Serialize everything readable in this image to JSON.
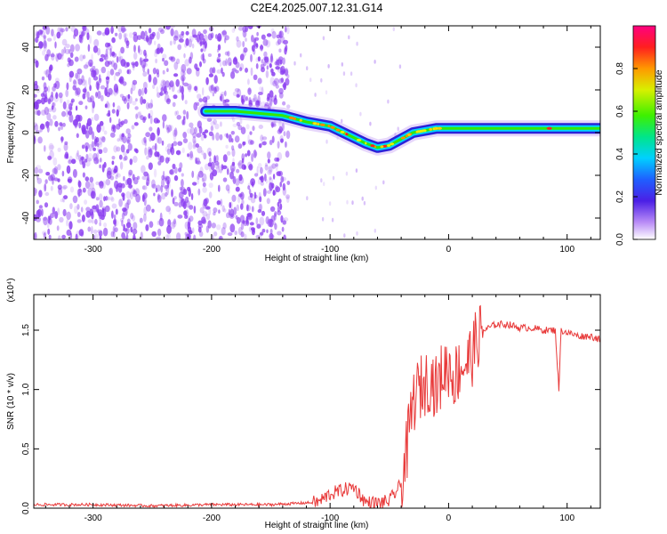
{
  "figure_title": "C2E4.2025.007.12.31.G14",
  "colors": {
    "snr_line": "#e83a3a",
    "noise": "#8a3cf0",
    "axis": "#000000"
  },
  "chart_data": [
    {
      "type": "heatmap",
      "xlabel": "Height of straight line (km)",
      "ylabel": "Frequency (Hz)",
      "xlim": [
        -350,
        128
      ],
      "ylim": [
        -50,
        50
      ],
      "xticks": [
        -300,
        -200,
        -100,
        0,
        100
      ],
      "yticks": [
        -40,
        -20,
        0,
        20,
        40
      ],
      "colorbar": {
        "label": "Normalized spectral amplitude",
        "ticks": [
          "0.0",
          "0.2",
          "0.4",
          "0.6",
          "0.8"
        ],
        "range": [
          0,
          1
        ]
      },
      "noise_region_x": [
        -350,
        -135
      ],
      "signal_track": {
        "x": [
          -205,
          -180,
          -160,
          -140,
          -120,
          -100,
          -85,
          -70,
          -60,
          -50,
          -40,
          -30,
          -20,
          -10,
          0,
          20,
          60,
          90,
          128
        ],
        "y": [
          10,
          10,
          9,
          8,
          5,
          3,
          -1,
          -5,
          -7,
          -6,
          -3,
          0,
          1,
          2,
          2,
          2,
          2,
          2,
          2
        ]
      }
    },
    {
      "type": "line",
      "name": "SNR",
      "xlabel": "Height of straight line (km)",
      "ylabel": "SNR (10 * v/v)",
      "y_scale_label": "(x10⁴)",
      "xlim": [
        -350,
        128
      ],
      "ylim": [
        0,
        1.8
      ],
      "xticks": [
        -300,
        -200,
        -100,
        0,
        100
      ],
      "yticks": [
        "0.0",
        "0.5",
        "1.0",
        "1.5"
      ],
      "x": [
        -350,
        -300,
        -250,
        -200,
        -150,
        -110,
        -100,
        -90,
        -80,
        -70,
        -60,
        -50,
        -40,
        -35,
        -30,
        -25,
        -20,
        -15,
        -10,
        -5,
        0,
        5,
        10,
        15,
        20,
        25,
        30,
        40,
        50,
        60,
        70,
        80,
        90,
        93,
        95,
        100,
        110,
        120,
        128
      ],
      "y": [
        0.03,
        0.03,
        0.02,
        0.03,
        0.03,
        0.05,
        0.12,
        0.15,
        0.18,
        0.05,
        0.04,
        0.06,
        0.2,
        0.5,
        0.9,
        1.0,
        1.05,
        1.1,
        1.0,
        1.15,
        1.2,
        1.1,
        1.2,
        1.22,
        1.3,
        1.45,
        1.5,
        1.55,
        1.55,
        1.52,
        1.52,
        1.5,
        1.5,
        1.0,
        1.5,
        1.48,
        1.45,
        1.45,
        1.42
      ]
    }
  ]
}
